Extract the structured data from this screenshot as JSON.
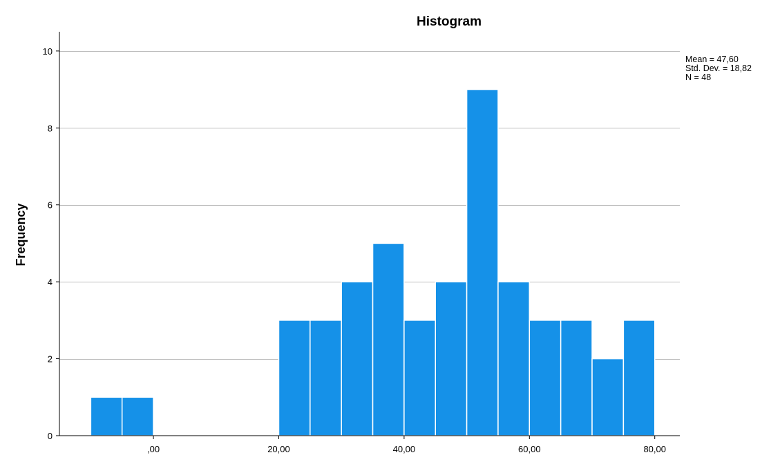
{
  "chart_data": {
    "type": "bar",
    "title": "Histogram",
    "xlabel": "",
    "ylabel": "Frequency",
    "bin_width": 5,
    "bins": [
      {
        "start": -10,
        "end": -5,
        "count": 1
      },
      {
        "start": -5,
        "end": 0,
        "count": 1
      },
      {
        "start": 0,
        "end": 5,
        "count": 0
      },
      {
        "start": 5,
        "end": 10,
        "count": 0
      },
      {
        "start": 10,
        "end": 15,
        "count": 0
      },
      {
        "start": 15,
        "end": 20,
        "count": 0
      },
      {
        "start": 20,
        "end": 25,
        "count": 3
      },
      {
        "start": 25,
        "end": 30,
        "count": 3
      },
      {
        "start": 30,
        "end": 35,
        "count": 4
      },
      {
        "start": 35,
        "end": 40,
        "count": 5
      },
      {
        "start": 40,
        "end": 45,
        "count": 3
      },
      {
        "start": 45,
        "end": 50,
        "count": 4
      },
      {
        "start": 50,
        "end": 55,
        "count": 9
      },
      {
        "start": 55,
        "end": 60,
        "count": 4
      },
      {
        "start": 60,
        "end": 65,
        "count": 3
      },
      {
        "start": 65,
        "end": 70,
        "count": 3
      },
      {
        "start": 70,
        "end": 75,
        "count": 2
      },
      {
        "start": 75,
        "end": 80,
        "count": 3
      }
    ],
    "xlim": [
      -15,
      84
    ],
    "ylim": [
      0,
      10.5
    ],
    "x_ticks": [
      {
        "value": 0,
        "label": ",00"
      },
      {
        "value": 20,
        "label": "20,00"
      },
      {
        "value": 40,
        "label": "40,00"
      },
      {
        "value": 60,
        "label": "60,00"
      },
      {
        "value": 80,
        "label": "80,00"
      }
    ],
    "y_ticks": [
      {
        "value": 0,
        "label": "0"
      },
      {
        "value": 2,
        "label": "2"
      },
      {
        "value": 4,
        "label": "4"
      },
      {
        "value": 6,
        "label": "6"
      },
      {
        "value": 8,
        "label": "8"
      },
      {
        "value": 10,
        "label": "10"
      }
    ],
    "grid": true,
    "legend_placement": "top-right",
    "stats": {
      "mean": "Mean = 47,60",
      "std_dev": "Std. Dev. = 18,82",
      "n": "N = 48"
    },
    "colors": {
      "bar": "#1591e8",
      "bar_edge": "#ffffff",
      "grid": "#bdbdbd",
      "axis": "#000000"
    }
  }
}
